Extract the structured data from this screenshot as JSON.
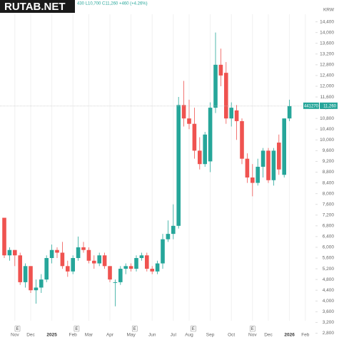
{
  "chart_data": {
    "type": "candlestick",
    "header": "430 L10,700 C11,260 +460 (+4.26%)",
    "watermark": "RUTAB.NET",
    "currency": "KRW",
    "up_color": "#26a69a",
    "down_color": "#ef5350",
    "open": [
      7100,
      5700,
      5900,
      5700,
      4700,
      5300,
      4400,
      4500,
      4800,
      5600,
      5900,
      5800,
      5300,
      5100,
      5600,
      6000,
      5900,
      5500,
      5400,
      5700,
      5300,
      4700,
      4700,
      5200,
      5300,
      5200,
      5600,
      5700,
      5200,
      5100,
      5400,
      6300,
      6500,
      6800,
      11300,
      10800,
      10600,
      9600,
      9100,
      9200,
      11200,
      12800,
      12500,
      10800,
      11100,
      10700,
      9300,
      8600,
      8400,
      9000,
      9600,
      8500,
      9900,
      8700,
      10800
    ],
    "high": [
      7100,
      6000,
      5900,
      5800,
      5400,
      5300,
      4800,
      5000,
      5700,
      6100,
      6000,
      6200,
      5500,
      5700,
      6400,
      6200,
      6000,
      5700,
      5800,
      5800,
      5300,
      4800,
      5300,
      5400,
      5400,
      5700,
      5800,
      5800,
      5300,
      5500,
      6500,
      7000,
      7600,
      11600,
      12200,
      11500,
      11200,
      10100,
      10300,
      11400,
      14000,
      13400,
      12900,
      11400,
      11300,
      10800,
      9500,
      9100,
      9300,
      9700,
      9700,
      9700,
      10200,
      10800,
      11500
    ],
    "low": [
      5600,
      5500,
      5300,
      4600,
      4500,
      4300,
      3900,
      4300,
      4700,
      5400,
      5600,
      5200,
      4900,
      5000,
      5500,
      5800,
      5400,
      5200,
      5300,
      5200,
      4700,
      3800,
      4600,
      5000,
      5100,
      5100,
      5500,
      5100,
      5000,
      5000,
      5200,
      6200,
      6300,
      6700,
      10500,
      10400,
      9300,
      8900,
      9000,
      8800,
      11000,
      12000,
      10600,
      10500,
      10000,
      9100,
      8400,
      7900,
      8300,
      8600,
      8400,
      8300,
      8700,
      8600,
      10700
    ],
    "close": [
      5700,
      5900,
      5700,
      4700,
      5300,
      4400,
      4500,
      4800,
      5600,
      5900,
      5800,
      5300,
      5100,
      5600,
      6000,
      5900,
      5500,
      5400,
      5700,
      5300,
      4800,
      4700,
      5200,
      5300,
      5200,
      5600,
      5700,
      5200,
      5100,
      5400,
      6300,
      6500,
      6800,
      11300,
      10800,
      10600,
      9600,
      9100,
      10200,
      11200,
      12800,
      12400,
      10800,
      11200,
      10700,
      9300,
      8600,
      8400,
      9000,
      9600,
      8500,
      9600,
      8900,
      10800,
      11260
    ],
    "last_price": {
      "value": 11260,
      "label": "11,260"
    },
    "last_price_note": "441270",
    "ylim": [
      2600,
      15000
    ],
    "yticks": [
      {
        "value": 2800,
        "label": "2,800"
      },
      {
        "value": 3200,
        "label": "3,200"
      },
      {
        "value": 3600,
        "label": "3,600"
      },
      {
        "value": 4000,
        "label": "4,000"
      },
      {
        "value": 4400,
        "label": "4,400"
      },
      {
        "value": 4800,
        "label": "4,800"
      },
      {
        "value": 5200,
        "label": "5,200"
      },
      {
        "value": 5600,
        "label": "5,600"
      },
      {
        "value": 6000,
        "label": "6,000"
      },
      {
        "value": 6400,
        "label": "6,400"
      },
      {
        "value": 6800,
        "label": "6,800"
      },
      {
        "value": 7200,
        "label": "7,200"
      },
      {
        "value": 7600,
        "label": "7,600"
      },
      {
        "value": 8000,
        "label": "8,000"
      },
      {
        "value": 8400,
        "label": "8,400"
      },
      {
        "value": 8800,
        "label": "8,800"
      },
      {
        "value": 9200,
        "label": "9,200"
      },
      {
        "value": 9600,
        "label": "9,600"
      },
      {
        "value": 10000,
        "label": "10,000"
      },
      {
        "value": 10400,
        "label": "10,400"
      },
      {
        "value": 10800,
        "label": "10,800"
      },
      {
        "value": 11200,
        "label": "11,200"
      },
      {
        "value": 11600,
        "label": "11,600"
      },
      {
        "value": 12000,
        "label": "12,000"
      },
      {
        "value": 12400,
        "label": "12,400"
      },
      {
        "value": 12800,
        "label": "12,800"
      },
      {
        "value": 13200,
        "label": "13,200"
      },
      {
        "value": 13600,
        "label": "13,600"
      },
      {
        "value": 14000,
        "label": "14,000"
      },
      {
        "value": 14400,
        "label": "14,400"
      }
    ],
    "xticks": [
      {
        "value": 2,
        "label": "Nov"
      },
      {
        "value": 5,
        "label": "Dec"
      },
      {
        "value": 9,
        "label": "2025"
      },
      {
        "value": 13,
        "label": "Feb"
      },
      {
        "value": 16,
        "label": "Mar"
      },
      {
        "value": 20,
        "label": "Apr"
      },
      {
        "value": 24,
        "label": "May"
      },
      {
        "value": 28,
        "label": "Jun"
      },
      {
        "value": 32,
        "label": "Jul"
      },
      {
        "value": 35,
        "label": "Aug"
      },
      {
        "value": 39,
        "label": "Sep"
      },
      {
        "value": 43,
        "label": "Oct"
      },
      {
        "value": 47,
        "label": "Nov"
      },
      {
        "value": 50,
        "label": "Dec"
      },
      {
        "value": 54,
        "label": "2026"
      },
      {
        "value": 57,
        "label": "Feb"
      }
    ],
    "events": [
      {
        "x": 2.5,
        "label": "E"
      },
      {
        "x": 13.7,
        "label": "E"
      },
      {
        "x": 24.7,
        "label": "E"
      },
      {
        "x": 35.8,
        "label": "E"
      },
      {
        "x": 47,
        "label": "E"
      }
    ]
  }
}
